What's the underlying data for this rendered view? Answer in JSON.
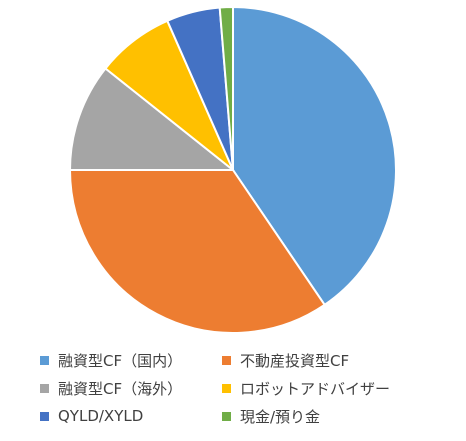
{
  "chart_data": {
    "type": "pie",
    "categories": [
      "融資型CF（国内）",
      "不動産投資型CF",
      "融資型CF（海外）",
      "ロボットアドバイザー",
      "QYLD/XYLD",
      "現金/預り金"
    ],
    "values": [
      40.5,
      34.5,
      10.7,
      7.7,
      5.3,
      1.3
    ],
    "colors": [
      "#5b9bd5",
      "#ed7d31",
      "#a5a5a5",
      "#ffc000",
      "#4472c4",
      "#70ad47"
    ],
    "start_angle_deg": 0,
    "direction": "clockwise",
    "legend_position": "bottom",
    "title": ""
  }
}
